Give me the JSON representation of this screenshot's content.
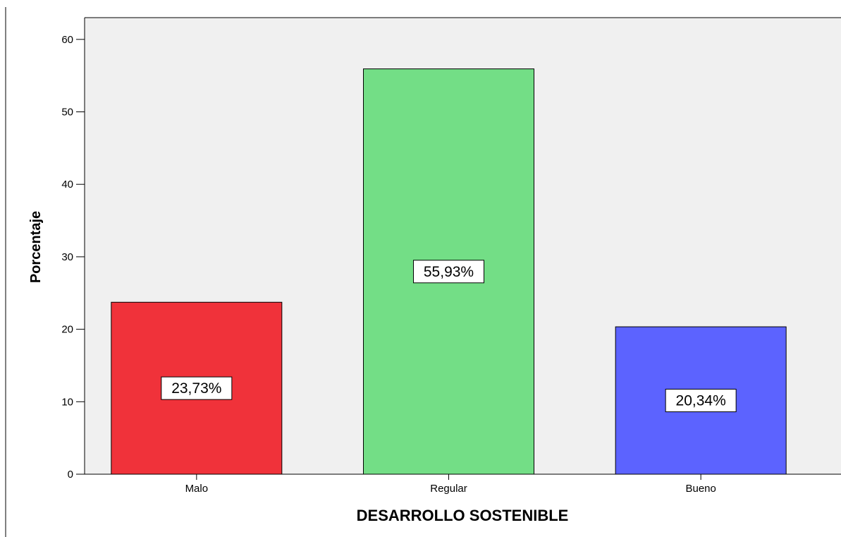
{
  "chart_data": {
    "type": "bar",
    "categories": [
      "Malo",
      "Regular",
      "Bueno"
    ],
    "values": [
      23.73,
      55.93,
      20.34
    ],
    "data_labels": [
      "23,73%",
      "55,93%",
      "20,34%"
    ],
    "colors": [
      "#f0323a",
      "#73de86",
      "#5c63ff"
    ],
    "xlabel": "DESARROLLO SOSTENIBLE",
    "ylabel": "Porcentaje",
    "ylim": [
      0,
      63
    ],
    "yticks": [
      0,
      10,
      20,
      30,
      40,
      50,
      60
    ],
    "ytick_labels": [
      "0",
      "10",
      "20",
      "30",
      "40",
      "50",
      "60"
    ],
    "grid": false,
    "plot_background": "#f0f0f0"
  }
}
